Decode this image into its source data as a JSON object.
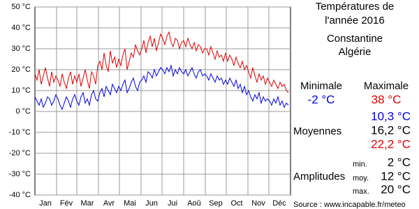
{
  "chart_data": {
    "type": "line",
    "x": [
      1,
      4,
      7,
      10,
      13,
      16,
      19,
      22,
      25,
      28,
      31,
      34,
      37,
      40,
      43,
      46,
      49,
      52,
      55,
      58,
      61,
      64,
      67,
      70,
      73,
      76,
      79,
      82,
      85,
      88,
      91,
      94,
      97,
      100,
      103,
      106,
      109,
      112,
      115,
      118,
      121,
      124,
      127,
      130,
      133,
      136,
      139,
      142,
      145,
      148,
      151,
      154,
      157,
      160,
      163,
      166,
      169,
      172,
      175,
      178,
      181,
      184,
      187,
      190,
      193,
      196,
      199,
      202,
      205,
      208,
      211,
      214,
      217,
      220,
      223,
      226,
      229,
      232,
      235,
      238,
      241,
      244,
      247,
      250,
      253,
      256,
      259,
      262,
      265,
      268,
      271,
      274,
      277,
      280,
      283,
      286,
      289,
      292,
      295,
      298,
      301,
      304,
      307,
      310,
      313,
      316,
      319,
      322,
      325,
      328,
      331,
      334,
      337,
      340,
      343,
      346,
      349,
      352,
      355,
      358,
      361,
      364
    ],
    "series": [
      {
        "name": "Maximale",
        "color": "#e00000",
        "values": [
          18,
          15,
          20,
          13,
          17,
          21,
          16,
          12,
          19,
          14,
          17,
          15,
          12,
          18,
          14,
          11,
          16,
          19,
          13,
          17,
          14,
          18,
          12,
          16,
          20,
          15,
          11,
          19,
          17,
          13,
          22,
          24,
          20,
          28,
          22,
          19,
          29,
          23,
          26,
          21,
          25,
          22,
          27,
          30,
          20,
          24,
          28,
          26,
          32,
          29,
          27,
          30,
          34,
          28,
          33,
          36,
          31,
          35,
          29,
          33,
          37,
          35,
          32,
          36,
          38,
          33,
          31,
          35,
          34,
          30,
          33,
          34,
          31,
          35,
          32,
          30,
          33,
          29,
          32,
          31,
          28,
          30,
          30,
          27,
          31,
          28,
          25,
          29,
          26,
          27,
          24,
          28,
          24,
          27,
          25,
          22,
          26,
          23,
          21,
          24,
          20,
          22,
          19,
          16,
          21,
          17,
          14,
          18,
          15,
          17,
          13,
          16,
          14,
          12,
          15,
          13,
          11,
          14,
          12,
          13,
          10,
          9
        ]
      },
      {
        "name": "Minimale",
        "color": "#0000e0",
        "values": [
          7,
          5,
          3,
          6,
          2,
          4,
          7,
          6,
          3,
          5,
          8,
          6,
          3,
          1,
          4,
          7,
          5,
          2,
          6,
          8,
          5,
          3,
          7,
          9,
          4,
          6,
          3,
          8,
          10,
          6,
          5,
          9,
          11,
          7,
          12,
          10,
          8,
          13,
          11,
          9,
          12,
          10,
          13,
          15,
          9,
          11,
          14,
          16,
          12,
          10,
          14,
          15,
          17,
          14,
          19,
          18,
          16,
          20,
          17,
          19,
          21,
          20,
          18,
          21,
          19,
          22,
          17,
          20,
          18,
          21,
          19,
          18,
          20,
          17,
          19,
          21,
          18,
          16,
          19,
          20,
          17,
          18,
          17,
          15,
          18,
          16,
          14,
          17,
          15,
          16,
          13,
          15,
          13,
          16,
          14,
          12,
          15,
          11,
          13,
          9,
          12,
          8,
          10,
          7,
          5,
          8,
          6,
          9,
          4,
          7,
          5,
          6,
          5,
          3,
          6,
          4,
          7,
          3,
          5,
          2,
          4,
          3
        ]
      }
    ],
    "xlim": [
      1,
      367
    ],
    "xgrid": [
      32,
      61,
      92,
      122,
      153,
      183,
      214,
      245,
      275,
      306,
      336
    ],
    "xticks": [
      {
        "value": 16,
        "label": "Jan"
      },
      {
        "value": 46,
        "label": "Fév"
      },
      {
        "value": 76,
        "label": "Mar"
      },
      {
        "value": 107,
        "label": "Avr"
      },
      {
        "value": 137,
        "label": "Mai"
      },
      {
        "value": 168,
        "label": "Jun"
      },
      {
        "value": 198,
        "label": "Jui"
      },
      {
        "value": 229,
        "label": "Aoû"
      },
      {
        "value": 260,
        "label": "Sep"
      },
      {
        "value": 290,
        "label": "Oct"
      },
      {
        "value": 321,
        "label": "Nov"
      },
      {
        "value": 351,
        "label": "Déc"
      }
    ],
    "ylim": [
      -40,
      50
    ],
    "yticks": [
      {
        "value": 50,
        "label": "50 °C"
      },
      {
        "value": 40,
        "label": "40 °C"
      },
      {
        "value": 30,
        "label": "30 °C"
      },
      {
        "value": 20,
        "label": "20 °C"
      },
      {
        "value": 10,
        "label": "10 °C"
      },
      {
        "value": 0,
        "label": "0 °C"
      },
      {
        "value": -10,
        "label": "-10 °C"
      },
      {
        "value": -20,
        "label": "-20 °C"
      },
      {
        "value": -30,
        "label": "-30 °C"
      },
      {
        "value": -40,
        "label": "-40 °C"
      }
    ],
    "grid": true
  },
  "panel": {
    "title_1": "Températures de",
    "title_2": "l'année 2016",
    "city": "Constantine",
    "country": "Algérie",
    "min_header": "Minimale",
    "max_header": "Maximale",
    "min_value": "-2 °C",
    "max_value": "38 °C",
    "mean_label": "Moyennes",
    "mean_min": "10,3 °C",
    "mean_all": "16,2 °C",
    "mean_max": "22,2 °C",
    "amp_label": "Amplitudes",
    "amp_min_label": "min.",
    "amp_min": "2 °C",
    "amp_mean_label": "moy.",
    "amp_mean": "12 °C",
    "amp_max_label": "max.",
    "amp_max": "20 °C",
    "source": "Source : www.incapable.fr/meteo"
  }
}
